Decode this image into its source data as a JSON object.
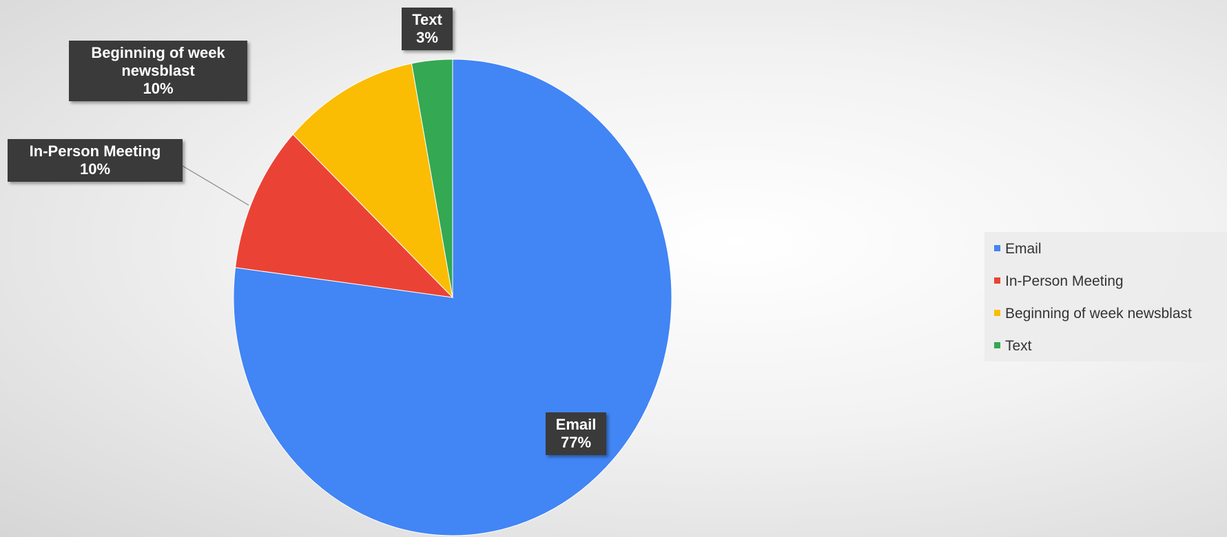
{
  "chart_data": {
    "type": "pie",
    "categories": [
      "Email",
      "In-Person Meeting",
      "Beginning of week newsblast",
      "Text"
    ],
    "values": [
      77,
      10,
      10,
      3
    ],
    "value_labels": [
      "77%",
      "10%",
      "10%",
      "3%"
    ],
    "colors": [
      "#4285f4",
      "#ea4335",
      "#fbbc04",
      "#34a853"
    ],
    "legend": "right"
  }
}
